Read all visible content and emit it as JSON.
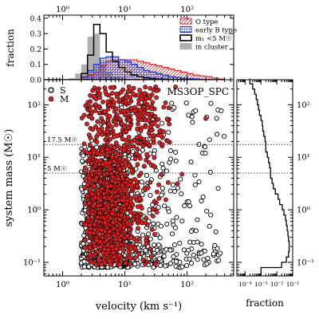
{
  "chart_data": [
    {
      "type": "histogram",
      "panel": "top",
      "ylabel": "fraction",
      "xscale": "log",
      "xlim": [
        0.5,
        560
      ],
      "ylim": [
        0,
        0.42
      ],
      "yticks": [
        0,
        0.1,
        0.2,
        0.3,
        0.4
      ],
      "ytick_labels": [
        "0.0",
        "0.1",
        "0.2",
        "0.3",
        "0.4"
      ],
      "xticks": [
        1,
        10,
        100
      ],
      "xtick_labels": [
        "10⁰",
        "10¹",
        "10²"
      ],
      "bin_edges_log10": [
        -0.3,
        -0.2,
        -0.1,
        0,
        0.1,
        0.2,
        0.3,
        0.4,
        0.5,
        0.6,
        0.7,
        0.8,
        0.9,
        1.0,
        1.1,
        1.2,
        1.3,
        1.4,
        1.5,
        1.6,
        1.7,
        1.8,
        1.9,
        2.0,
        2.1,
        2.2,
        2.3,
        2.4,
        2.5,
        2.6
      ],
      "series": [
        {
          "name": "O type",
          "color": "#e8262b",
          "pattern": "diagonal-hatch",
          "values": [
            0,
            0,
            0,
            0,
            0,
            0,
            0.012,
            0.03,
            0.05,
            0.09,
            0.12,
            0.13,
            0.13,
            0.13,
            0.13,
            0.12,
            0.11,
            0.1,
            0.09,
            0.08,
            0.07,
            0.06,
            0.05,
            0.04,
            0.03,
            0.025,
            0.02,
            0.012,
            0.005
          ]
        },
        {
          "name": "early B type",
          "color": "#1a2fcf",
          "pattern": "grid-hatch",
          "values": [
            0,
            0,
            0,
            0,
            0,
            0,
            0.02,
            0.06,
            0.1,
            0.14,
            0.15,
            0.15,
            0.13,
            0.12,
            0.1,
            0.08,
            0.06,
            0.05,
            0.04,
            0.03,
            0.02,
            0.015,
            0.01,
            0.008,
            0.005,
            0.003,
            0.002,
            0.001,
            0
          ]
        },
        {
          "name": "m₁ <5 M☉",
          "color": "#000000",
          "pattern": "outline",
          "values": [
            0,
            0,
            0,
            0,
            0,
            0,
            0.04,
            0.16,
            0.36,
            0.3,
            0.18,
            0.12,
            0.08,
            0.05,
            0.03,
            0.02,
            0.012,
            0.008,
            0.005,
            0.003,
            0.002,
            0.001,
            0,
            0,
            0,
            0,
            0,
            0,
            0
          ]
        },
        {
          "name": "in cluster",
          "color": "#b0b0b0",
          "pattern": "filled",
          "values": [
            0,
            0,
            0,
            0,
            0.01,
            0.04,
            0.1,
            0.28,
            0.3,
            0.12,
            0.05,
            0.02,
            0.01,
            0.004,
            0.002,
            0,
            0,
            0,
            0,
            0,
            0,
            0,
            0,
            0,
            0,
            0,
            0,
            0,
            0
          ]
        }
      ]
    },
    {
      "type": "scatter",
      "panel": "main",
      "label": "MS3OP_SPC",
      "xlabel": "velocity (km s⁻¹)",
      "ylabel": "system mass (M☉)",
      "xscale": "log",
      "yscale": "log",
      "xlim": [
        0.5,
        560
      ],
      "ylim": [
        0.055,
        300
      ],
      "xticks": [
        1,
        10,
        100
      ],
      "xtick_labels": [
        "10⁰",
        "10¹",
        "10²"
      ],
      "yticks": [
        0.1,
        1,
        10,
        100
      ],
      "ytick_labels": [
        "10⁻¹",
        "10⁰",
        "10¹",
        "10²"
      ],
      "reference_lines": [
        {
          "y": 17.5,
          "label": "17.5 M☉"
        },
        {
          "y": 5,
          "label": "5 M☉"
        }
      ],
      "series": [
        {
          "name": "S",
          "marker": "open-circle",
          "color": "#000000",
          "note": "singles, dense at 2–40 km/s for masses 0.08–5, sparse high-velocity tail to ~400 km/s"
        },
        {
          "name": "M",
          "marker": "filled-circle",
          "color": "#e01e1e",
          "note": "multiples, dense at 2–15 km/s, masses 0.1–200"
        }
      ],
      "legend_position": "top-left"
    },
    {
      "type": "line",
      "panel": "right",
      "xlabel": "fraction",
      "xscale": "log",
      "yscale": "log",
      "xlim": [
        3e-05,
        0.1
      ],
      "ylim": [
        0.055,
        300
      ],
      "xticks": [
        0.0001,
        0.001,
        0.01,
        0.1
      ],
      "xtick_labels": [
        "10⁻⁴",
        "10⁻³",
        "10⁻²",
        "10⁻¹"
      ],
      "yticks": [
        0.1,
        1,
        10,
        100
      ],
      "ytick_labels": [
        "10⁻¹",
        "10⁰",
        "10¹",
        "10²"
      ],
      "step_log10_mass": [
        -1.25,
        -1.1,
        -1.0,
        -0.9,
        -0.8,
        -0.7,
        -0.6,
        -0.5,
        -0.4,
        -0.3,
        -0.2,
        -0.1,
        0,
        0.1,
        0.2,
        0.3,
        0.4,
        0.5,
        0.6,
        0.7,
        0.8,
        0.9,
        1.0,
        1.1,
        1.2,
        1.3,
        1.4,
        1.5,
        1.6,
        1.7,
        1.8,
        1.9,
        2.0,
        2.1,
        2.2,
        2.3,
        2.4
      ],
      "step_fraction": [
        0.001,
        0.02,
        0.04,
        0.055,
        0.06,
        0.06,
        0.055,
        0.05,
        0.045,
        0.04,
        0.035,
        0.028,
        0.022,
        0.015,
        0.012,
        0.008,
        0.006,
        0.005,
        0.004,
        0.004,
        0.0035,
        0.003,
        0.0025,
        0.002,
        0.002,
        0.0018,
        0.0015,
        0.0013,
        0.0012,
        0.001,
        0.0008,
        0.0007,
        0.0006,
        0.0005,
        0.0004,
        0.0003,
        0.0002
      ]
    }
  ]
}
